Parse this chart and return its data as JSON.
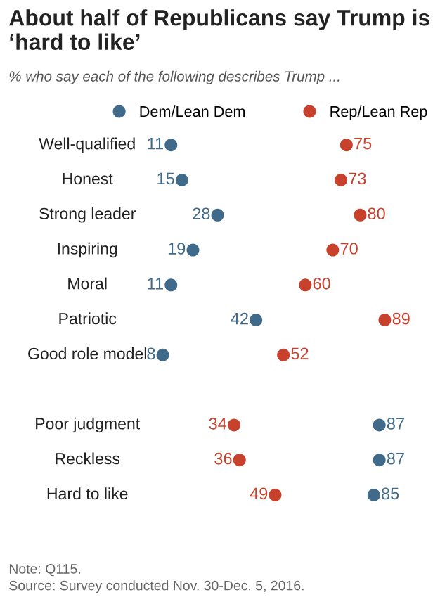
{
  "chart_data": {
    "type": "scatter",
    "orientation": "horizontal",
    "title": "About half of Republicans say Trump is ‘hard to like’",
    "subtitle": "% who say each of the following describes Trump ...",
    "categories": [
      "Well-qualified",
      "Honest",
      "Strong leader",
      "Inspiring",
      "Moral",
      "Patriotic",
      "Good role model",
      null,
      "Poor judgment",
      "Reckless",
      "Hard to like"
    ],
    "series": [
      {
        "name": "Dem/Lean Dem",
        "color": "#3f6a8a",
        "values": [
          11,
          15,
          28,
          19,
          11,
          42,
          8,
          null,
          87,
          87,
          85
        ]
      },
      {
        "name": "Rep/Lean Rep",
        "color": "#c8412c",
        "values": [
          75,
          73,
          80,
          70,
          60,
          89,
          52,
          null,
          34,
          36,
          49
        ]
      }
    ],
    "data_labels": true,
    "legend": "top",
    "marker": "circle",
    "annotations": [
      "Note: Q115.",
      "Source: Survey conducted Nov. 30-Dec. 5, 2016."
    ]
  }
}
